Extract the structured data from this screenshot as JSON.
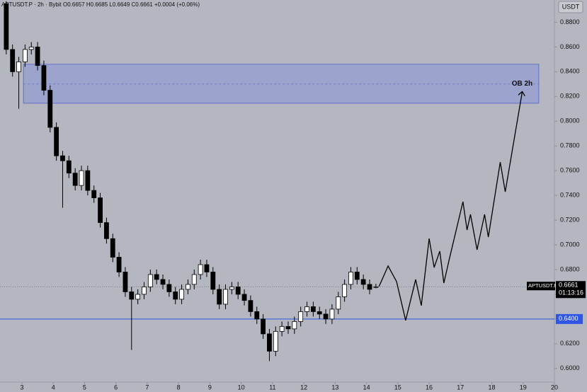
{
  "chart_data": {
    "type": "candlestick",
    "header": "APTUSDT.P · 2h · Bybit  O0.6657 H0.6685 L0.6649 C0.6661 +0.0004 (+0.06%)",
    "currency": "USDT",
    "xlim": [
      2.3,
      20.0
    ],
    "xticks": [
      3,
      4,
      5,
      6,
      7,
      8,
      9,
      10,
      11,
      12,
      13,
      14,
      15,
      16,
      17,
      18,
      19,
      20
    ],
    "ylim": [
      0.589,
      0.898
    ],
    "yticks": [
      {
        "value": 0.6,
        "label": "0.6000"
      },
      {
        "value": 0.62,
        "label": "0.6200"
      },
      {
        "value": 0.64,
        "label": "0.6400"
      },
      {
        "value": 0.66,
        "label": "0.6600"
      },
      {
        "value": 0.68,
        "label": "0.6800"
      },
      {
        "value": 0.7,
        "label": "0.7000"
      },
      {
        "value": 0.72,
        "label": "0.7200"
      },
      {
        "value": 0.74,
        "label": "0.7400"
      },
      {
        "value": 0.76,
        "label": "0.7600"
      },
      {
        "value": 0.78,
        "label": "0.7800"
      },
      {
        "value": 0.8,
        "label": "0.8000"
      },
      {
        "value": 0.82,
        "label": "0.8200"
      },
      {
        "value": 0.84,
        "label": "0.8400"
      },
      {
        "value": 0.86,
        "label": "0.8600"
      },
      {
        "value": 0.88,
        "label": "0.8800"
      }
    ],
    "up_color": "#ffffff",
    "down_color": "#000000",
    "candles": {
      "x": [
        2.5,
        2.7,
        2.9,
        3.1,
        3.3,
        3.5,
        3.7,
        3.9,
        4.1,
        4.3,
        4.5,
        4.7,
        4.9,
        5.1,
        5.3,
        5.5,
        5.7,
        5.9,
        6.1,
        6.3,
        6.5,
        6.7,
        6.9,
        7.1,
        7.3,
        7.5,
        7.7,
        7.9,
        8.1,
        8.3,
        8.5,
        8.7,
        8.9,
        9.1,
        9.3,
        9.5,
        9.7,
        9.9,
        10.1,
        10.3,
        10.5,
        10.7,
        10.9,
        11.1,
        11.3,
        11.5,
        11.7,
        11.9,
        12.1,
        12.3,
        12.5,
        12.7,
        12.9,
        13.1,
        13.3,
        13.5,
        13.7,
        13.9,
        14.1,
        14.3
      ],
      "open": [
        0.895,
        0.858,
        0.84,
        0.848,
        0.858,
        0.86,
        0.845,
        0.825,
        0.795,
        0.772,
        0.768,
        0.758,
        0.748,
        0.76,
        0.744,
        0.738,
        0.718,
        0.705,
        0.69,
        0.678,
        0.662,
        0.656,
        0.66,
        0.666,
        0.676,
        0.672,
        0.668,
        0.662,
        0.656,
        0.664,
        0.668,
        0.676,
        0.684,
        0.678,
        0.664,
        0.652,
        0.664,
        0.666,
        0.66,
        0.655,
        0.646,
        0.64,
        0.628,
        0.614,
        0.63,
        0.634,
        0.632,
        0.638,
        0.646,
        0.65,
        0.646,
        0.644,
        0.64,
        0.648,
        0.658,
        0.668,
        0.678,
        0.672,
        0.668,
        0.6657
      ],
      "high": [
        0.897,
        0.862,
        0.852,
        0.862,
        0.864,
        0.864,
        0.849,
        0.829,
        0.799,
        0.776,
        0.772,
        0.762,
        0.764,
        0.764,
        0.748,
        0.742,
        0.722,
        0.709,
        0.694,
        0.682,
        0.666,
        0.664,
        0.67,
        0.68,
        0.68,
        0.676,
        0.672,
        0.666,
        0.668,
        0.672,
        0.68,
        0.688,
        0.688,
        0.682,
        0.668,
        0.668,
        0.67,
        0.67,
        0.664,
        0.659,
        0.65,
        0.644,
        0.632,
        0.634,
        0.638,
        0.638,
        0.642,
        0.65,
        0.654,
        0.654,
        0.65,
        0.648,
        0.652,
        0.662,
        0.672,
        0.682,
        0.682,
        0.676,
        0.672,
        0.6685
      ],
      "low": [
        0.854,
        0.836,
        0.81,
        0.844,
        0.854,
        0.841,
        0.821,
        0.791,
        0.768,
        0.73,
        0.754,
        0.744,
        0.744,
        0.74,
        0.734,
        0.714,
        0.701,
        0.686,
        0.674,
        0.658,
        0.615,
        0.652,
        0.656,
        0.662,
        0.668,
        0.664,
        0.658,
        0.652,
        0.652,
        0.66,
        0.664,
        0.672,
        0.674,
        0.66,
        0.648,
        0.648,
        0.66,
        0.656,
        0.651,
        0.642,
        0.636,
        0.624,
        0.606,
        0.61,
        0.626,
        0.628,
        0.628,
        0.634,
        0.642,
        0.642,
        0.64,
        0.636,
        0.636,
        0.644,
        0.654,
        0.664,
        0.668,
        0.664,
        0.66,
        0.6649
      ],
      "close": [
        0.858,
        0.84,
        0.848,
        0.858,
        0.86,
        0.845,
        0.825,
        0.795,
        0.772,
        0.768,
        0.758,
        0.748,
        0.76,
        0.744,
        0.738,
        0.718,
        0.705,
        0.69,
        0.678,
        0.662,
        0.656,
        0.66,
        0.666,
        0.676,
        0.672,
        0.668,
        0.662,
        0.656,
        0.664,
        0.668,
        0.676,
        0.684,
        0.678,
        0.664,
        0.652,
        0.664,
        0.666,
        0.66,
        0.655,
        0.646,
        0.64,
        0.628,
        0.614,
        0.63,
        0.634,
        0.632,
        0.638,
        0.646,
        0.65,
        0.646,
        0.644,
        0.64,
        0.648,
        0.658,
        0.668,
        0.678,
        0.672,
        0.668,
        0.664,
        0.6661
      ]
    },
    "zone": {
      "label": "OB 2h",
      "x": [
        3.05,
        19.5
      ],
      "y": [
        0.8145,
        0.846
      ],
      "mid": 0.83,
      "color": "#7f8fe0"
    },
    "level": {
      "value": 0.64,
      "label": "0.6400",
      "color": "#2f55e6"
    },
    "last_price": {
      "symbol": "APTUSDT.P",
      "value": 0.6661,
      "label": "0.6661",
      "countdown": "01:13:16"
    },
    "projection": {
      "x": [
        14.4,
        14.69,
        14.96,
        15.25,
        15.57,
        15.75,
        16.0,
        16.16,
        16.34,
        16.47,
        16.65,
        17.08,
        17.21,
        17.32,
        17.53,
        17.77,
        17.89,
        18.27,
        18.43,
        18.97
      ],
      "y": [
        0.6663,
        0.6829,
        0.6703,
        0.6389,
        0.672,
        0.6509,
        0.7051,
        0.6817,
        0.6949,
        0.6691,
        0.6891,
        0.7349,
        0.712,
        0.7246,
        0.696,
        0.7246,
        0.7063,
        0.7669,
        0.7429,
        0.8234
      ]
    }
  }
}
